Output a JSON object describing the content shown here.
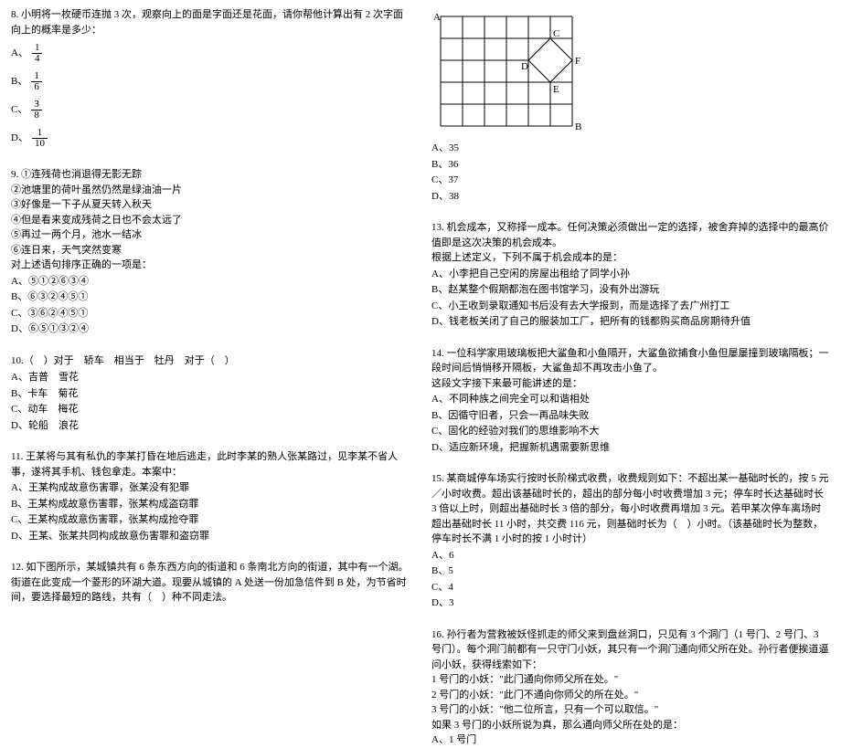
{
  "left": {
    "q8": {
      "stem": "8. 小明将一枚硬币连抛 3 次，观察向上的面是字面还是花面，请你帮他计算出有 2 次字面向上的概率是多少：",
      "opts": [
        {
          "label": "A、",
          "num": "1",
          "den": "4"
        },
        {
          "label": "B、",
          "num": "1",
          "den": "6"
        },
        {
          "label": "C、",
          "num": "3",
          "den": "8"
        },
        {
          "label": "D、",
          "num": "1",
          "den": "10"
        }
      ]
    },
    "q9": {
      "lines": [
        "9. ①连残荷也消退得无影无踪",
        "②池塘里的荷叶虽然仍然是绿油油一片",
        "③好像是一下子从夏天转入秋天",
        "④但是看来变成残荷之日也不会太远了",
        "⑤再过一两个月，池水一结冰",
        "⑥连日来，天气突然变寒",
        "对上述语句排序正确的一项是："
      ],
      "opts": [
        "A、⑤①②⑥③④",
        "B、⑥③②④⑤①",
        "C、③⑥②④⑤①",
        "D、⑥⑤①③②④"
      ]
    },
    "q10": {
      "stem": "10.（　）对于　轿车　相当于　牡丹　对于（　）",
      "opts": [
        "A、吉普　雪花",
        "B、卡车　菊花",
        "C、动车　梅花",
        "D、轮船　浪花"
      ]
    },
    "q11": {
      "lines": [
        "11. 王某将与其有私仇的李某打昏在地后逃走，此时李某的熟人张某路过，见李某不省人事，遂将其手机、钱包拿走。本案中："
      ],
      "opts": [
        "A、王某构成故意伤害罪，张某没有犯罪",
        "B、王某构成故意伤害罪，张某构成盗窃罪",
        "C、王某构成故意伤害罪，张某构成抢夺罪",
        "D、王某、张某共同构成故意伤害罪和盗窃罪"
      ]
    },
    "q12": {
      "lines": [
        "12. 如下图所示，某城镇共有 6 条东西方向的街道和 6 条南北方向的街道，其中有一个湖。街道在此变成一个菱形的环湖大道。现要从城镇的 A 处送一份加急信件到 B 处，为节省时间，要选择最短的路线，共有（　）种不同走法。"
      ]
    }
  },
  "right": {
    "gridOpts": [
      "A、35",
      "B、36",
      "C、37",
      "D、38"
    ],
    "q13": {
      "lines": [
        "13. 机会成本，又称择一成本。任何决策必须做出一定的选择，被舍弃掉的选择中的最高价值即是这次决策的机会成本。",
        "根据上述定义，下列不属于机会成本的是："
      ],
      "opts": [
        "A、小李把自己空闲的房屋出租给了同学小孙",
        "B、赵某整个假期都泡在图书馆学习，没有外出游玩",
        "C、小王收到录取通知书后没有去大学报到，而是选择了去广州打工",
        "D、钱老板关闭了自己的服装加工厂，把所有的钱都购买商品房期待升值"
      ]
    },
    "q14": {
      "lines": [
        "14. 一位科学家用玻璃板把大鲨鱼和小鱼隔开，大鲨鱼欲捕食小鱼但屡屡撞到玻璃隔板；一段时间后悄悄移开隔板，大鲨鱼却不再攻击小鱼了。",
        "这段文字接下来最可能讲述的是："
      ],
      "opts": [
        "A、不同种族之间完全可以和谐相处",
        "B、因循守旧者，只会一再品味失败",
        "C、固化的经验对我们的思维影响不大",
        "D、适应新环境，把握新机遇需要新思维"
      ]
    },
    "q15": {
      "lines": [
        "15. 某商城停车场实行按时长阶梯式收费，收费规则如下：不超出某一基础时长的，按 5 元／小时收费。超出该基础时长的，超出的部分每小时收费增加 3 元；停车时长达基础时长 3 倍以上时，则超出基础时长 3 倍的部分，每小时收费再增加 3 元。若甲某次停车离场时超出基础时长 11 小时，共交费 116 元，则基础时长为（　）小时。（该基础时长为整数，停车时长不满 1 小时的按 1 小时计）"
      ],
      "opts": [
        "A、6",
        "B、5",
        "C、4",
        "D、3"
      ]
    },
    "q16": {
      "lines": [
        "16. 孙行者为营救被妖怪抓走的师父来到盘丝洞口，只见有 3 个洞门（1 号门、2 号门、3 号门）。每个洞门前都有一只守门小妖，其只有一个洞门通向师父所在处。孙行者便挨道逼问小妖，获得线索如下：",
        "1 号门的小妖：\"此门通向你师父所在处。\"",
        "2 号门的小妖：\"此门不通向你师父的所在处。\"",
        "3 号门的小妖：\"他二位所言，只有一个可以取信。\"",
        "如果 3 号门的小妖所说为真，那么通向师父所在处的是：",
        "A、1 号门"
      ]
    }
  },
  "grid": {
    "cols": 6,
    "rows": 5,
    "cell": 24,
    "labelA": "A",
    "labelB": "B",
    "labelC": "C",
    "labelD": "D",
    "labelE": "E",
    "labelF": "F"
  }
}
